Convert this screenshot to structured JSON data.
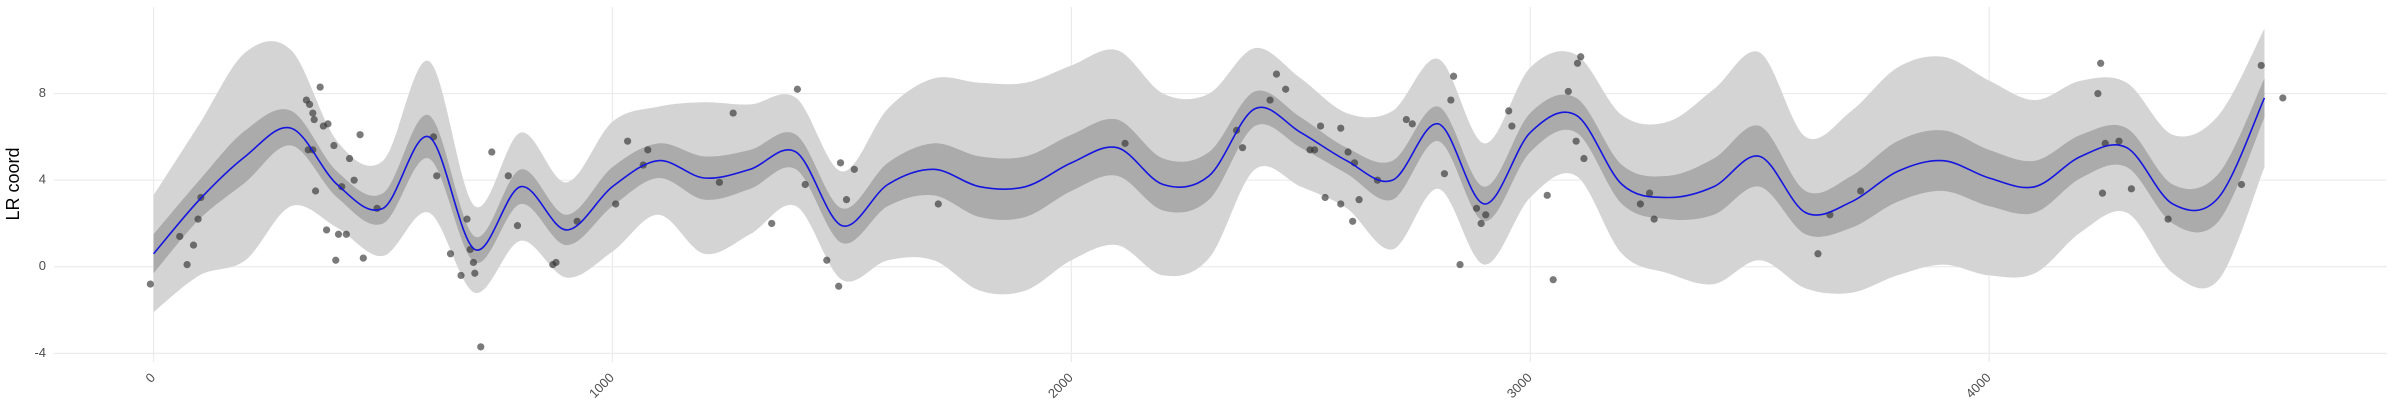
{
  "chart_data": {
    "type": "line",
    "y_label": "LR coord",
    "xlim": [
      -217,
      4867
    ],
    "ylim": [
      -4.4,
      12
    ],
    "xticks": [
      0,
      1000,
      2000,
      3000,
      4000
    ],
    "yticks": [
      -4,
      0,
      4,
      8
    ],
    "grid": true,
    "x": [
      0,
      100,
      200,
      300,
      400,
      500,
      600,
      700,
      800,
      900,
      1000,
      1100,
      1200,
      1300,
      1400,
      1500,
      1600,
      1700,
      1800,
      1900,
      2000,
      2100,
      2200,
      2300,
      2400,
      2500,
      2600,
      2700,
      2800,
      2900,
      3000,
      3100,
      3200,
      3300,
      3400,
      3500,
      3600,
      3700,
      3800,
      3900,
      4000,
      4100,
      4200,
      4300,
      4400,
      4500,
      4600
    ],
    "mean": [
      0.6,
      3.1,
      5.1,
      6.4,
      3.8,
      2.7,
      6.0,
      0.8,
      3.7,
      1.7,
      3.7,
      4.9,
      4.1,
      4.5,
      5.3,
      1.9,
      3.8,
      4.5,
      3.7,
      3.7,
      4.8,
      5.5,
      3.8,
      4.2,
      7.3,
      6.2,
      4.9,
      4.0,
      6.6,
      2.9,
      6.2,
      7.0,
      3.8,
      3.2,
      3.7,
      5.1,
      2.5,
      3.0,
      4.4,
      4.9,
      4.1,
      3.7,
      5.1,
      5.5,
      2.9,
      3.2,
      7.8
    ],
    "mean_color": "#1515e0",
    "inner_lower": [
      -0.3,
      2.2,
      3.9,
      5.6,
      3.2,
      2.0,
      5.0,
      0.2,
      2.9,
      1.0,
      2.8,
      4.1,
      3.1,
      3.6,
      4.5,
      1.1,
      2.8,
      3.3,
      2.3,
      2.3,
      3.5,
      4.2,
      2.6,
      3.1,
      6.5,
      5.5,
      4.3,
      3.1,
      5.8,
      2.1,
      5.3,
      6.2,
      2.9,
      2.2,
      2.4,
      3.7,
      1.5,
      1.8,
      3.0,
      3.5,
      2.8,
      2.5,
      4.1,
      4.6,
      2.0,
      2.1,
      6.9
    ],
    "inner_upper": [
      1.5,
      4.0,
      6.3,
      7.2,
      4.4,
      3.4,
      7.0,
      1.4,
      4.5,
      2.4,
      4.6,
      5.7,
      5.1,
      5.4,
      6.1,
      2.7,
      4.8,
      5.7,
      5.1,
      5.1,
      6.1,
      6.8,
      5.0,
      5.3,
      8.1,
      6.9,
      5.5,
      4.9,
      7.4,
      3.7,
      7.1,
      7.8,
      4.7,
      4.2,
      5.0,
      6.5,
      3.5,
      4.2,
      5.8,
      6.3,
      5.4,
      4.9,
      6.1,
      6.4,
      3.8,
      4.3,
      8.7
    ],
    "inner_color": "#ababab",
    "outer_lower": [
      -2.1,
      -0.4,
      0.3,
      2.8,
      1.8,
      0.5,
      2.5,
      -1.2,
      1.2,
      -0.5,
      0.7,
      2.4,
      0.6,
      1.5,
      2.8,
      -0.6,
      0.3,
      0.3,
      -1.1,
      -1.1,
      0.3,
      1.0,
      -0.4,
      0.4,
      4.5,
      3.7,
      2.7,
      0.8,
      3.6,
      0.1,
      3.2,
      4.2,
      0.6,
      -0.3,
      -0.8,
      0.3,
      -1.0,
      -1.2,
      -0.4,
      0.1,
      -0.4,
      -0.3,
      1.6,
      2.5,
      -0.3,
      -0.6,
      4.6
    ],
    "outer_upper": [
      3.3,
      6.6,
      9.9,
      10.0,
      5.8,
      4.9,
      9.5,
      2.8,
      6.2,
      3.9,
      6.7,
      7.4,
      7.6,
      7.5,
      7.8,
      4.4,
      7.3,
      8.7,
      8.5,
      8.5,
      9.3,
      10.0,
      8.0,
      8.0,
      10.1,
      8.7,
      7.1,
      7.2,
      9.6,
      5.7,
      9.2,
      9.8,
      7.0,
      6.7,
      8.2,
      9.9,
      6.0,
      7.2,
      9.2,
      9.7,
      8.6,
      7.7,
      8.6,
      8.5,
      6.1,
      7.0,
      11.0
    ],
    "outer_color": "#d4d4d4",
    "points": {
      "color": "#333333",
      "x": [
        -7,
        57,
        73,
        87,
        97,
        103,
        333,
        340,
        347,
        350,
        363,
        370,
        380,
        337,
        347,
        353,
        377,
        393,
        397,
        403,
        410,
        420,
        427,
        437,
        450,
        457,
        487,
        610,
        617,
        647,
        670,
        683,
        690,
        697,
        700,
        713,
        737,
        773,
        793,
        870,
        877,
        923,
        1007,
        1033,
        1067,
        1077,
        1233,
        1263,
        1347,
        1403,
        1420,
        1467,
        1493,
        1497,
        1510,
        1527,
        1710,
        2117,
        2360,
        2373,
        2433,
        2447,
        2467,
        2520,
        2530,
        2543,
        2553,
        2587,
        2587,
        2603,
        2617,
        2613,
        2627,
        2667,
        2730,
        2743,
        2813,
        2827,
        2833,
        2847,
        2883,
        2893,
        2903,
        2953,
        2960,
        3037,
        3050,
        3083,
        3103,
        3110,
        3117,
        3100,
        3240,
        3260,
        3270,
        3627,
        3653,
        3720,
        4237,
        4243,
        4253,
        4247,
        4283,
        4310,
        4390,
        4550,
        4593,
        4640
      ],
      "y": [
        -0.8,
        1.4,
        0.1,
        1.0,
        2.2,
        3.2,
        7.7,
        7.5,
        7.1,
        6.8,
        8.3,
        6.5,
        6.6,
        5.4,
        5.4,
        3.5,
        1.7,
        5.6,
        0.3,
        1.5,
        3.7,
        1.5,
        5.0,
        4.0,
        6.1,
        0.4,
        2.7,
        6.0,
        4.2,
        0.6,
        -0.4,
        2.2,
        0.8,
        0.2,
        -0.3,
        -3.7,
        5.3,
        4.2,
        1.9,
        0.1,
        0.2,
        2.1,
        2.9,
        5.8,
        4.7,
        5.4,
        3.9,
        7.1,
        2.0,
        8.2,
        3.8,
        0.3,
        -0.9,
        4.8,
        3.1,
        4.5,
        2.9,
        5.7,
        6.3,
        5.5,
        7.7,
        8.9,
        8.2,
        5.4,
        5.4,
        6.5,
        3.2,
        2.9,
        6.4,
        5.3,
        4.8,
        2.1,
        3.1,
        4.0,
        6.8,
        6.6,
        4.3,
        7.7,
        8.8,
        0.1,
        2.7,
        2.0,
        2.4,
        7.2,
        6.5,
        3.3,
        -0.6,
        8.1,
        9.4,
        9.7,
        5.0,
        5.8,
        2.9,
        3.4,
        2.2,
        0.6,
        2.4,
        3.5,
        8.0,
        9.4,
        5.7,
        3.4,
        5.8,
        3.6,
        2.2,
        3.8,
        9.3,
        7.8
      ]
    }
  }
}
